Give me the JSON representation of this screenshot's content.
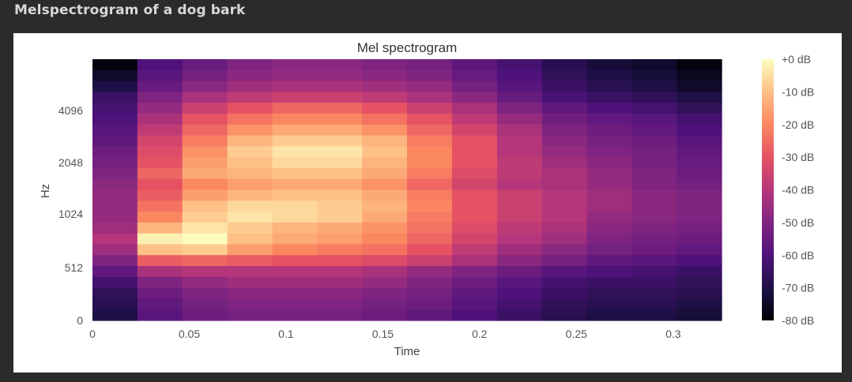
{
  "caption": "Melspectrogram of a dog bark",
  "chart_data": {
    "type": "heatmap",
    "title": "Mel spectrogram",
    "xlabel": "Time",
    "ylabel": "Hz",
    "x_ticks": [
      "0",
      "0.05",
      "0.1",
      "0.15",
      "0.2",
      "0.25",
      "0.3"
    ],
    "x_tick_values": [
      0,
      0.05,
      0.1,
      0.15,
      0.2,
      0.25,
      0.3
    ],
    "xlim": [
      0,
      0.325
    ],
    "y_ticks": [
      "0",
      "512",
      "1024",
      "2048",
      "4096"
    ],
    "y_scale": "mel",
    "colormap": "magma",
    "colorbar": {
      "labels": [
        "+0 dB",
        "-10 dB",
        "-20 dB",
        "-30 dB",
        "-40 dB",
        "-50 dB",
        "-60 dB",
        "-70 dB",
        "-80 dB"
      ],
      "range_db": [
        -80,
        0
      ]
    },
    "time_frames": [
      0.0116,
      0.0348,
      0.058,
      0.0813,
      0.1045,
      0.1277,
      0.1509,
      0.1741,
      0.1974,
      0.2206,
      0.2438,
      0.267,
      0.2902,
      0.3135
    ],
    "mel_bins_top_to_bottom": 24,
    "values_db": [
      [
        -78,
        -60,
        -55,
        -50,
        -48,
        -48,
        -50,
        -52,
        -57,
        -62,
        -68,
        -72,
        -74,
        -78
      ],
      [
        -74,
        -58,
        -52,
        -48,
        -46,
        -46,
        -48,
        -50,
        -55,
        -60,
        -66,
        -70,
        -72,
        -76
      ],
      [
        -70,
        -55,
        -48,
        -44,
        -42,
        -42,
        -44,
        -46,
        -52,
        -58,
        -64,
        -68,
        -70,
        -74
      ],
      [
        -64,
        -50,
        -42,
        -38,
        -36,
        -36,
        -38,
        -42,
        -48,
        -55,
        -61,
        -64,
        -66,
        -70
      ],
      [
        -62,
        -46,
        -36,
        -30,
        -26,
        -26,
        -30,
        -36,
        -42,
        -50,
        -56,
        -60,
        -62,
        -66
      ],
      [
        -60,
        -42,
        -30,
        -24,
        -20,
        -20,
        -24,
        -30,
        -38,
        -46,
        -53,
        -56,
        -58,
        -62
      ],
      [
        -58,
        -38,
        -26,
        -18,
        -14,
        -14,
        -18,
        -26,
        -34,
        -42,
        -50,
        -54,
        -56,
        -60
      ],
      [
        -56,
        -34,
        -22,
        -12,
        -8,
        -8,
        -12,
        -22,
        -30,
        -40,
        -48,
        -52,
        -54,
        -58
      ],
      [
        -54,
        -32,
        -18,
        -8,
        -4,
        -4,
        -10,
        -20,
        -30,
        -40,
        -46,
        -50,
        -52,
        -56
      ],
      [
        -52,
        -30,
        -16,
        -10,
        -6,
        -6,
        -12,
        -20,
        -30,
        -38,
        -44,
        -48,
        -52,
        -55
      ],
      [
        -50,
        -26,
        -14,
        -12,
        -10,
        -10,
        -14,
        -22,
        -32,
        -38,
        -42,
        -46,
        -50,
        -54
      ],
      [
        -48,
        -30,
        -20,
        -16,
        -14,
        -14,
        -18,
        -26,
        -34,
        -40,
        -42,
        -46,
        -50,
        -52
      ],
      [
        -46,
        -28,
        -16,
        -12,
        -10,
        -10,
        -14,
        -22,
        -30,
        -36,
        -40,
        -44,
        -48,
        -50
      ],
      [
        -46,
        -24,
        -10,
        -6,
        -6,
        -8,
        -12,
        -20,
        -30,
        -36,
        -40,
        -44,
        -48,
        -50
      ],
      [
        -46,
        -20,
        -8,
        -4,
        -6,
        -8,
        -14,
        -22,
        -30,
        -36,
        -40,
        -46,
        -48,
        -50
      ],
      [
        -44,
        -12,
        -4,
        -8,
        -12,
        -14,
        -18,
        -24,
        -32,
        -38,
        -42,
        -48,
        -50,
        -52
      ],
      [
        -40,
        -2,
        0,
        -10,
        -14,
        -16,
        -20,
        -26,
        -34,
        -40,
        -44,
        -50,
        -52,
        -54
      ],
      [
        -44,
        -10,
        -8,
        -16,
        -20,
        -22,
        -24,
        -30,
        -38,
        -44,
        -48,
        -52,
        -54,
        -56
      ],
      [
        -50,
        -28,
        -26,
        -28,
        -30,
        -30,
        -32,
        -36,
        -42,
        -48,
        -52,
        -56,
        -58,
        -60
      ],
      [
        -56,
        -42,
        -40,
        -40,
        -40,
        -40,
        -42,
        -46,
        -50,
        -54,
        -58,
        -60,
        -62,
        -64
      ],
      [
        -62,
        -50,
        -46,
        -44,
        -44,
        -44,
        -46,
        -50,
        -54,
        -58,
        -62,
        -64,
        -64,
        -66
      ],
      [
        -66,
        -54,
        -50,
        -48,
        -48,
        -48,
        -50,
        -52,
        -56,
        -60,
        -64,
        -66,
        -66,
        -68
      ],
      [
        -68,
        -56,
        -52,
        -50,
        -50,
        -50,
        -52,
        -54,
        -58,
        -62,
        -66,
        -68,
        -68,
        -70
      ],
      [
        -70,
        -58,
        -54,
        -52,
        -52,
        -52,
        -54,
        -56,
        -60,
        -64,
        -68,
        -70,
        -70,
        -72
      ]
    ]
  }
}
